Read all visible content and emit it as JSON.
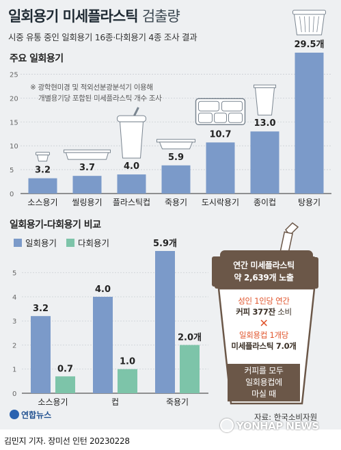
{
  "header": {
    "title_main": "일회용기 미세플라스틱",
    "title_light": "검출량",
    "subtitle": "시중 유통 중인 일회용기 16종·다회용기 4종 조사 결과"
  },
  "chart1": {
    "section_title": "주요 일회용기",
    "note_lines": [
      "※ 광학현미경 및 적외선분광분석기 이용해",
      "개별용기당 포함된 미세플라스틱 개수 조사"
    ]
  },
  "chart2": {
    "section_title": "일회용기-다회용기 비교"
  },
  "cup": {
    "label_line1": "연간 미세플라스틱",
    "label_line2": "약 2,639개 노출",
    "line1": "성인 1인당 연간",
    "line2_a": "커피 377잔",
    "line2_b": " 소비",
    "cross": "✕",
    "line3": "일회용컵 1개당",
    "line4": "미세플라스틱 7.0개",
    "bottom1": "커피를 모두",
    "bottom2": "일회용컵에",
    "bottom3": "마실 때"
  },
  "footer": {
    "logo": "연합뉴스",
    "source": "자료: 한국소비자원",
    "byline": "김민지 기자. 장미선 인턴  20230228",
    "watermark": "YONHAP NEWS"
  },
  "colors": {
    "disposable": "#7b9ac9",
    "reusable": "#7dc4a9",
    "cup_brown": "#6b5748",
    "accent_red": "#e0542b"
  },
  "chart_data": [
    {
      "type": "bar",
      "title": "주요 일회용기",
      "categories": [
        "소스용기",
        "씰링용기",
        "플라스틱컵",
        "죽용기",
        "도시락용기",
        "종이컵",
        "탕용기"
      ],
      "values": [
        3.2,
        3.7,
        4.0,
        5.9,
        10.7,
        13.0,
        29.5
      ],
      "value_labels": [
        "3.2",
        "3.7",
        "4.0",
        "5.9",
        "10.7",
        "13.0",
        "29.5개"
      ],
      "yticks": [
        0,
        5,
        10,
        15,
        20,
        25
      ],
      "ylim": [
        0,
        29.5
      ],
      "grid": true,
      "icons": [
        "sauce-container-icon",
        "sealing-tray-icon",
        "plastic-cup-icon",
        "porridge-bowl-icon",
        "lunchbox-icon",
        "paper-cup-icon",
        "soup-container-icon"
      ]
    },
    {
      "type": "bar",
      "title": "일회용기-다회용기 비교",
      "categories": [
        "소스용기",
        "컵",
        "죽용기"
      ],
      "series": [
        {
          "name": "일회용기",
          "values": [
            3.2,
            4.0,
            5.9
          ],
          "value_labels": [
            "3.2",
            "4.0",
            "5.9개"
          ]
        },
        {
          "name": "다회용기",
          "values": [
            0.7,
            1.0,
            2.0
          ],
          "value_labels": [
            "0.7",
            "1.0",
            "2.0개"
          ]
        }
      ],
      "yticks": [
        0,
        1,
        2,
        3,
        4,
        5
      ],
      "ylim": [
        0,
        5.9
      ],
      "grid": true,
      "legend": "top-left"
    }
  ]
}
